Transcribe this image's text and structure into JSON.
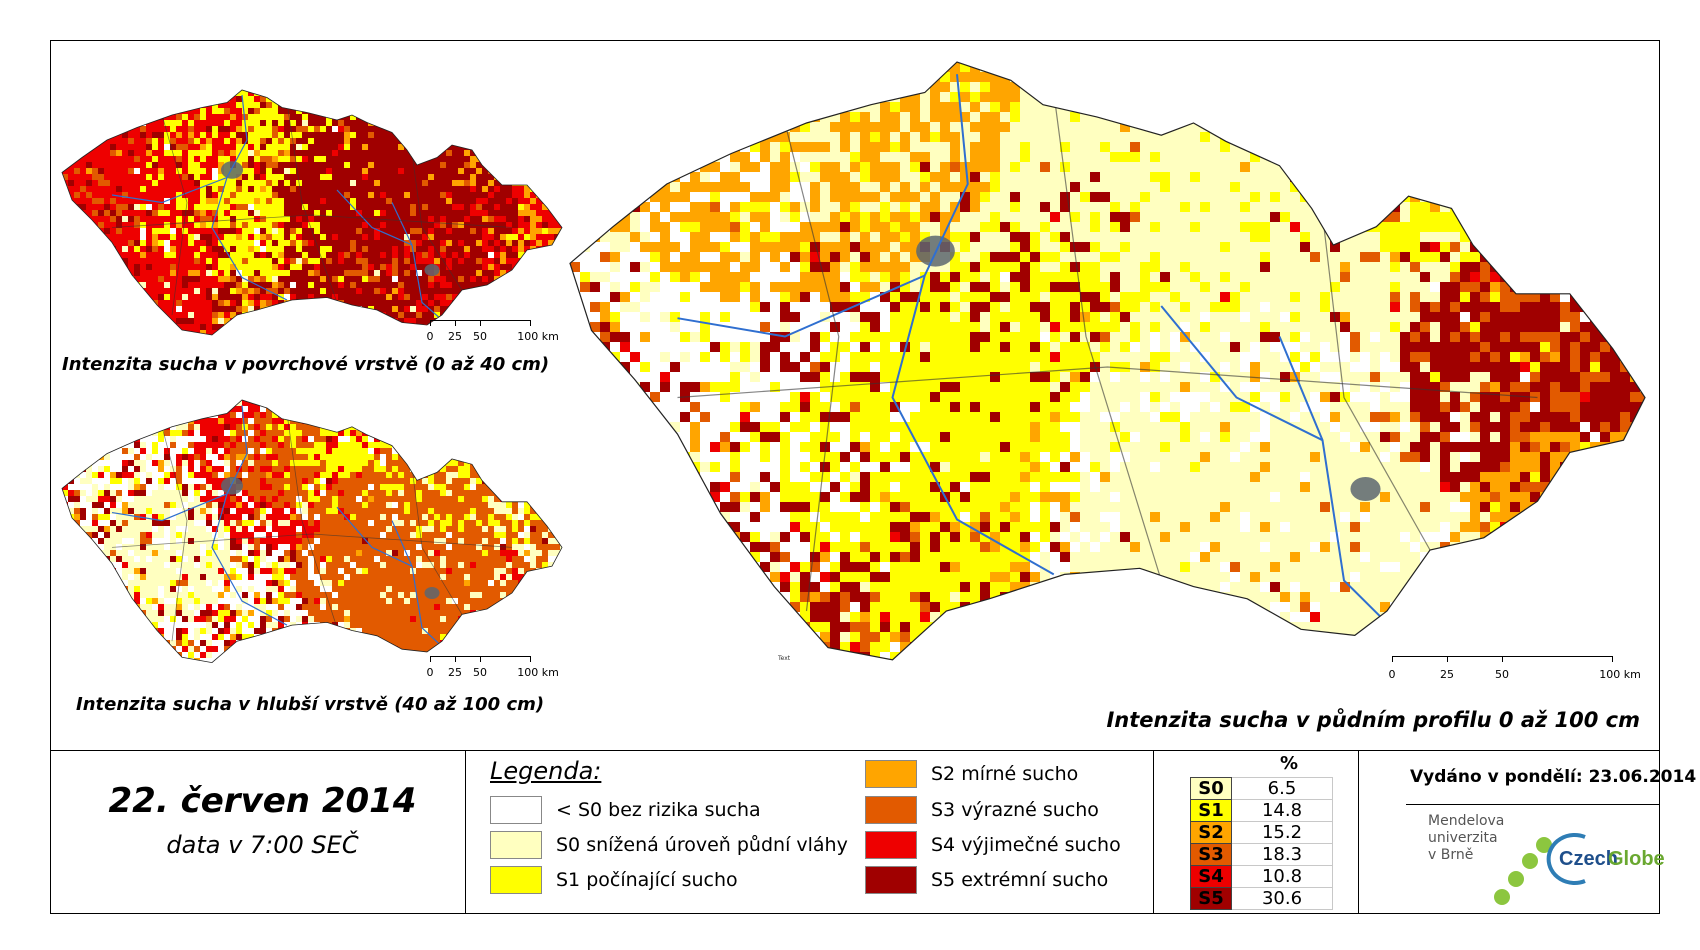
{
  "maps": {
    "surface": {
      "caption": "Intenzita sucha v povrchové vrstvě (0 až 40 cm)"
    },
    "deep": {
      "caption": "Intenzita sucha v hlubší vrstvě (40 až 100 cm)"
    },
    "profile": {
      "caption": "Intenzita sucha v půdním profilu 0 až 100 cm"
    },
    "scale": {
      "labels": [
        "0",
        "25",
        "50",
        "100 km"
      ]
    },
    "watermark": "Text"
  },
  "date": {
    "main": "22. červen 2014",
    "sub": "data v 7:00 SEČ"
  },
  "legend": {
    "title": "Legenda:",
    "items": [
      {
        "label": "< S0 bez rizika sucha",
        "color": "#ffffff"
      },
      {
        "label": "S0 snížená úroveň půdní vláhy",
        "color": "#ffffc0"
      },
      {
        "label": "S1 počínající sucho",
        "color": "#ffff00"
      },
      {
        "label": "S2 mírné sucho",
        "color": "#ffa500"
      },
      {
        "label": "S3 výrazné sucho",
        "color": "#e25a00"
      },
      {
        "label": "S4 výjimečné sucho",
        "color": "#ee0000"
      },
      {
        "label": "S5 extrémní sucho",
        "color": "#a00000"
      }
    ]
  },
  "percent_table": {
    "header": "%",
    "rows": [
      {
        "cls": "S0",
        "value": "6.5",
        "color": "#ffffc0"
      },
      {
        "cls": "S1",
        "value": "14.8",
        "color": "#ffff00"
      },
      {
        "cls": "S2",
        "value": "15.2",
        "color": "#ffa500"
      },
      {
        "cls": "S3",
        "value": "18.3",
        "color": "#e25a00"
      },
      {
        "cls": "S4",
        "value": "10.8",
        "color": "#ee0000"
      },
      {
        "cls": "S5",
        "value": "30.6",
        "color": "#a00000"
      }
    ]
  },
  "issued": "Vydáno v pondělí: 23.06.2014",
  "logos": {
    "mendel": [
      "Mendelova",
      "univerzita",
      "v Brně"
    ],
    "czechglobe_a": "Czech",
    "czechglobe_b": "Globe"
  }
}
